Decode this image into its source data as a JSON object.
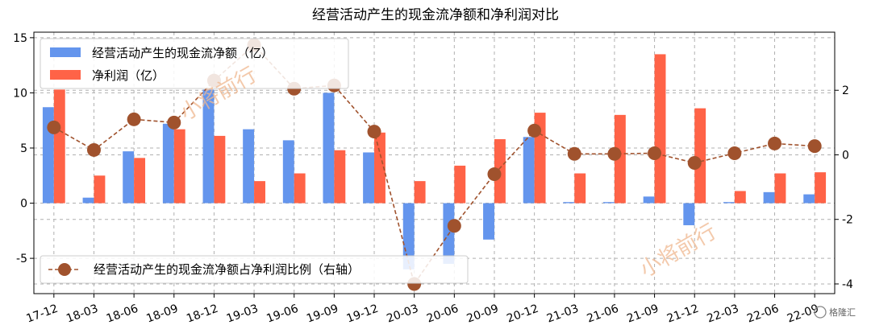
{
  "chart_data": {
    "type": "bar",
    "title": "经营活动产生的现金流净额和净利润对比",
    "categories": [
      "17-12",
      "18-03",
      "18-06",
      "18-09",
      "18-12",
      "19-03",
      "19-06",
      "19-09",
      "19-12",
      "20-03",
      "20-06",
      "20-09",
      "20-12",
      "21-03",
      "21-06",
      "21-09",
      "21-12",
      "22-03",
      "22-06",
      "22-09"
    ],
    "series": [
      {
        "name": "经营活动产生的现金流净额（亿）",
        "axis": "left",
        "type": "bar",
        "color": "#6495ed",
        "values": [
          8.7,
          0.5,
          4.7,
          7.2,
          10.3,
          6.7,
          5.7,
          10.0,
          4.6,
          -6.0,
          -5.5,
          -3.3,
          6.0,
          0.1,
          0.1,
          0.6,
          -2.0,
          0.1,
          1.0,
          0.8
        ]
      },
      {
        "name": "净利润（亿）",
        "axis": "left",
        "type": "bar",
        "color": "#ff6347",
        "values": [
          10.3,
          2.5,
          4.1,
          6.7,
          6.1,
          2.0,
          2.7,
          4.8,
          6.4,
          2.0,
          3.4,
          5.8,
          8.2,
          2.7,
          8.0,
          13.5,
          8.6,
          1.1,
          2.7,
          2.8
        ]
      },
      {
        "name": "经营活动产生的现金流净额占净利润比例（右轴）",
        "axis": "right",
        "type": "line",
        "color": "#a0522d",
        "values": [
          0.85,
          0.15,
          1.1,
          1.0,
          2.3,
          3.4,
          2.05,
          2.15,
          0.72,
          -4.0,
          -2.2,
          -0.6,
          0.75,
          0.03,
          0.03,
          0.05,
          -0.25,
          0.05,
          0.35,
          0.27
        ]
      }
    ],
    "ylim": [
      -8.2,
      15.5
    ],
    "y_ticks": [
      -5,
      0,
      5,
      10,
      15
    ],
    "y2lim": [
      -4.3,
      3.8
    ],
    "y2_ticks": [
      -4,
      -2,
      0,
      2
    ],
    "grid": true,
    "legend_top": "upper-left",
    "legend_bottom": "lower-left"
  },
  "watermark": "小将前行",
  "logo_text": "格隆汇"
}
